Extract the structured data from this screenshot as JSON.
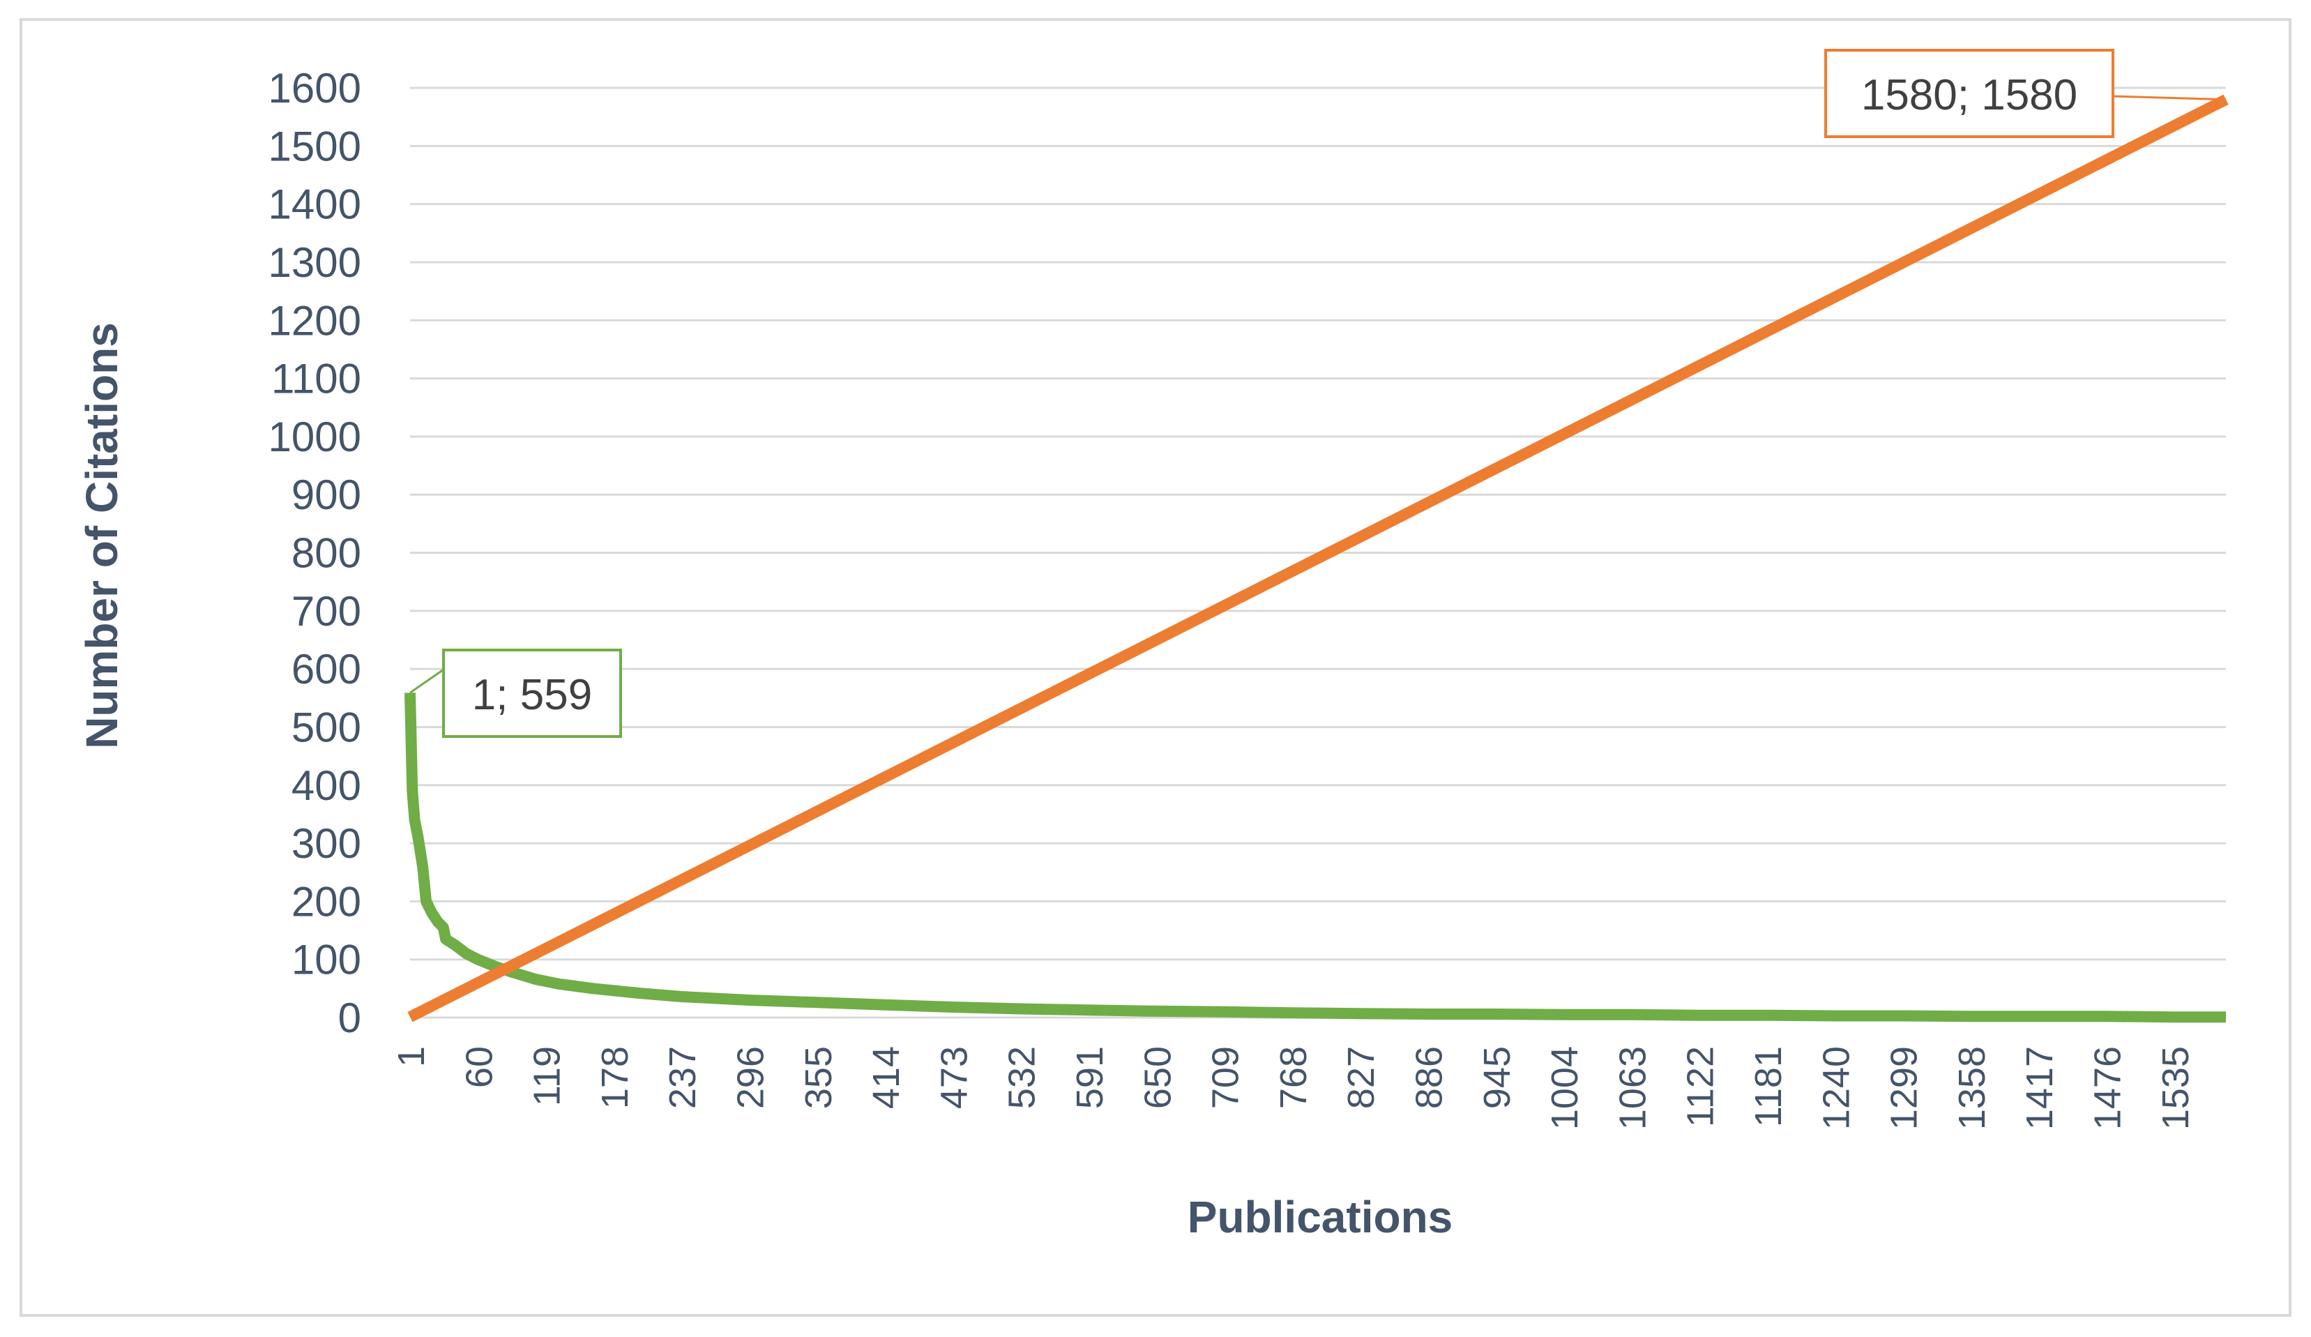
{
  "chart_data": {
    "type": "line",
    "title": "",
    "xlabel": "Publications",
    "ylabel": "Number of Citations",
    "ylim": [
      0,
      1600
    ],
    "y_ticks": [
      0,
      100,
      200,
      300,
      400,
      500,
      600,
      700,
      800,
      900,
      1000,
      1100,
      1200,
      1300,
      1400,
      1500,
      1600
    ],
    "x_range": [
      1,
      1580
    ],
    "x_ticks": [
      1,
      60,
      119,
      178,
      237,
      296,
      355,
      414,
      473,
      532,
      591,
      650,
      709,
      768,
      827,
      886,
      945,
      1004,
      1063,
      1122,
      1181,
      1240,
      1299,
      1358,
      1417,
      1476,
      1535
    ],
    "grid": "horizontal",
    "legend": "none",
    "series": [
      {
        "color": "#70ad47",
        "points": [
          [
            1,
            559
          ],
          [
            3,
            390
          ],
          [
            5,
            340
          ],
          [
            8,
            310
          ],
          [
            12,
            260
          ],
          [
            15,
            200
          ],
          [
            20,
            180
          ],
          [
            25,
            165
          ],
          [
            30,
            155
          ],
          [
            32,
            135
          ],
          [
            40,
            125
          ],
          [
            50,
            110
          ],
          [
            60,
            100
          ],
          [
            75,
            88
          ],
          [
            90,
            78
          ],
          [
            110,
            66
          ],
          [
            130,
            58
          ],
          [
            160,
            50
          ],
          [
            200,
            42
          ],
          [
            237,
            36
          ],
          [
            296,
            30
          ],
          [
            355,
            26
          ],
          [
            414,
            22
          ],
          [
            473,
            18
          ],
          [
            532,
            15
          ],
          [
            591,
            13
          ],
          [
            650,
            11
          ],
          [
            709,
            10
          ],
          [
            768,
            8
          ],
          [
            827,
            7
          ],
          [
            886,
            6
          ],
          [
            945,
            6
          ],
          [
            1004,
            5
          ],
          [
            1063,
            5
          ],
          [
            1122,
            4
          ],
          [
            1181,
            4
          ],
          [
            1240,
            3
          ],
          [
            1299,
            3
          ],
          [
            1358,
            2
          ],
          [
            1417,
            2
          ],
          [
            1476,
            2
          ],
          [
            1535,
            1
          ],
          [
            1580,
            1
          ]
        ]
      },
      {
        "color": "#ed7d31",
        "points": [
          [
            1,
            1
          ],
          [
            1580,
            1580
          ]
        ]
      }
    ],
    "annotations": [
      {
        "text": "1; 559",
        "x": 1,
        "y": 559,
        "color": "#70ad47"
      },
      {
        "text": "1580; 1580",
        "x": 1580,
        "y": 1580,
        "color": "#ed7d31"
      }
    ]
  }
}
